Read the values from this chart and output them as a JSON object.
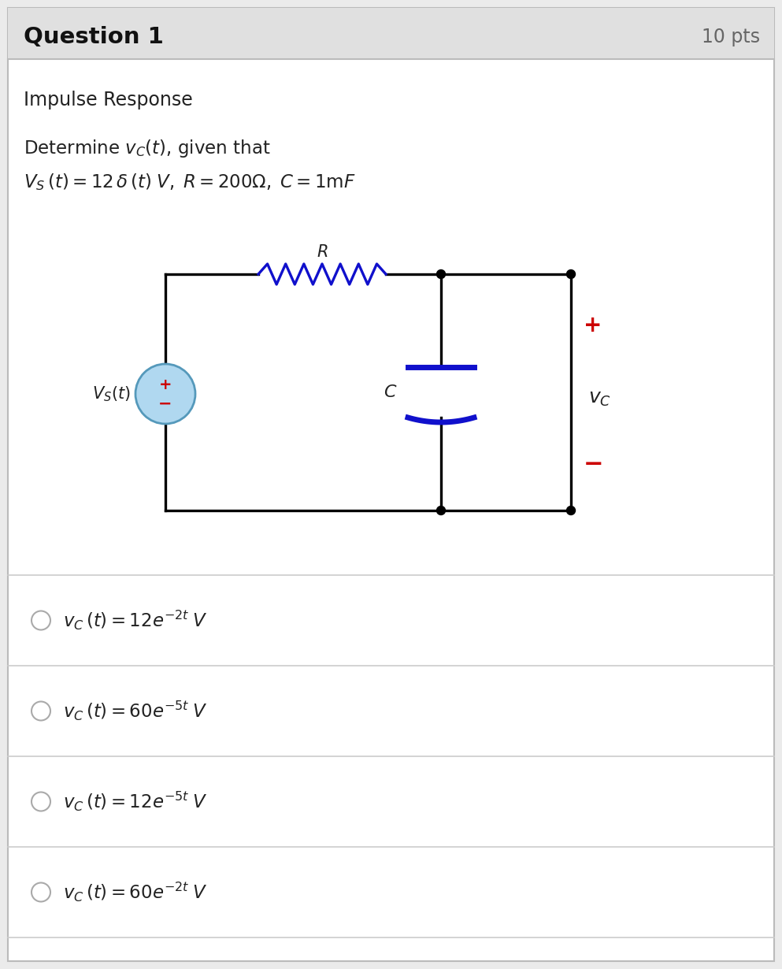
{
  "bg_color": "#ebebeb",
  "white": "#ffffff",
  "title_text": "Question 1",
  "pts_text": "10 pts",
  "section_title": "Impulse Response",
  "circuit_color": "#000000",
  "resistor_color": "#1010cc",
  "capacitor_color": "#1010cc",
  "source_fill": "#b0d8f0",
  "source_border": "#5599bb",
  "red_color": "#cc0000",
  "header_bg": "#e0e0e0",
  "border_color": "#bbbbbb",
  "line_color": "#cccccc",
  "text_color": "#222222",
  "pts_color": "#666666"
}
